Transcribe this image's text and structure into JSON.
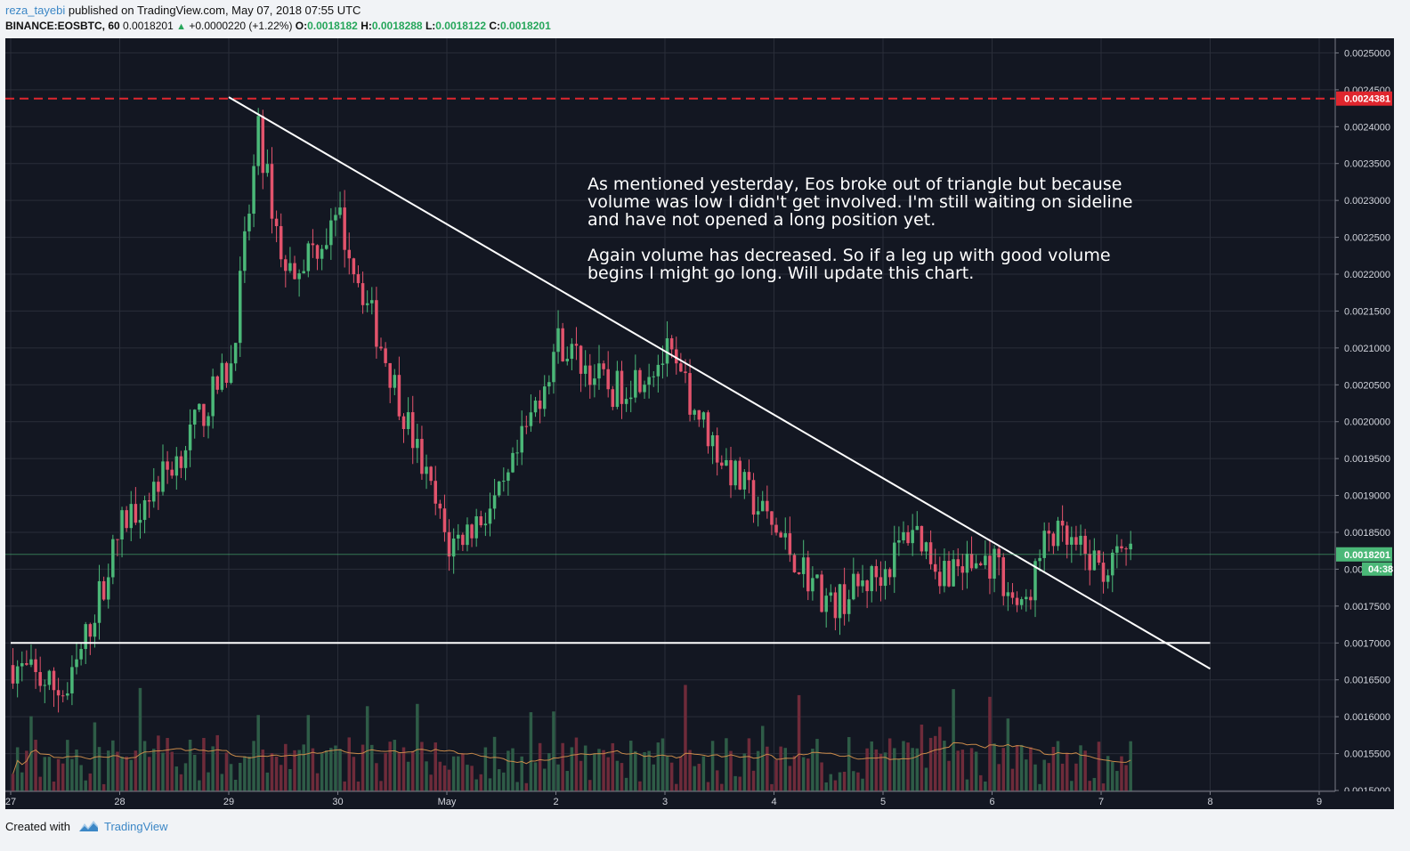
{
  "header": {
    "author": "reza_tayebi",
    "published": "published on TradingView.com, May 07, 2018 07:55 UTC",
    "symbol": "BINANCE:EOSBTC, 60",
    "last": "0.0018201",
    "change_arrow": "▲",
    "change": "+0.0000220 (+1.22%)",
    "o_label": "O:",
    "o_value": "0.0018182",
    "h_label": "H:",
    "h_value": "0.0018288",
    "l_label": "L:",
    "l_value": "0.0018122",
    "c_label": "C:",
    "c_value": "0.0018201"
  },
  "annotation": {
    "paragraph1": "As mentioned yesterday, Eos broke out of triangle but because\nvolume was low I didn't get involved. I'm still waiting on sideline\nand have not opened a long position yet.",
    "paragraph2": "Again volume has decreased. So if a leg up with good volume\nbegins I might go long. Will update this chart."
  },
  "footer": {
    "created_with": "Created with",
    "brand": "TradingView"
  },
  "colors": {
    "background": "#131722",
    "grid": "#2a2e39",
    "up": "#4bb878",
    "down": "#e2536c",
    "up_volume": "#2e5c47",
    "down_volume": "#6e2b3a",
    "resistance_line": "#e0262e",
    "trend_line": "#ffffff",
    "volume_ma": "#c98a4a"
  },
  "chart_data": {
    "type": "candlestick",
    "title": "BINANCE:EOSBTC, 60",
    "y_axis": {
      "min": 0.0015,
      "max": 0.00255,
      "tick_labels": [
        "0.0015000",
        "0.0015500",
        "0.0016000",
        "0.0016500",
        "0.0017000",
        "0.0017500",
        "0.0018000",
        "0.0018500",
        "0.0019000",
        "0.0019500",
        "0.0020000",
        "0.0020500",
        "0.0021000",
        "0.0021500",
        "0.0022000",
        "0.0022500",
        "0.0023000",
        "0.0023500",
        "0.0024000",
        "0.0024500",
        "0.0025000"
      ],
      "position": "right",
      "last_price_label": "0.0018201",
      "countdown_label": "04:38",
      "resistance_label": "0.0024381"
    },
    "x_axis": {
      "tick_labels": [
        "27",
        "28",
        "29",
        "30",
        "May",
        "2",
        "3",
        "4",
        "5",
        "6",
        "7",
        "8",
        "9"
      ]
    },
    "lines": [
      {
        "name": "resistance",
        "style": "dashed",
        "y": 0.0024381
      },
      {
        "name": "support",
        "style": "solid",
        "from": {
          "x": "27",
          "y": 0.0017
        },
        "to": {
          "x": "8",
          "y": 0.0017
        }
      },
      {
        "name": "descending trendline",
        "style": "solid",
        "from": {
          "x": "29",
          "y": 0.00244
        },
        "to": {
          "x": "8",
          "y": 0.001665
        }
      }
    ],
    "close_path": [
      [
        "27",
        0.00167
      ],
      [
        "27 12:00",
        0.00163
      ],
      [
        "28",
        0.00186
      ],
      [
        "28 12:00",
        0.00195
      ],
      [
        "29",
        0.00208
      ],
      [
        "29 06:00",
        0.00239
      ],
      [
        "29 12:00",
        0.0022
      ],
      [
        "30",
        0.00227
      ],
      [
        "30 12:00",
        0.00205
      ],
      [
        "May 00:00",
        0.00183
      ],
      [
        "May 12:00",
        0.0019
      ],
      [
        "2",
        0.00211
      ],
      [
        "2 12:00",
        0.00204
      ],
      [
        "3",
        0.00209
      ],
      [
        "3 12:00",
        0.00195
      ],
      [
        "4",
        0.00185
      ],
      [
        "4 12:00",
        0.00175
      ],
      [
        "5",
        0.0018
      ],
      [
        "5 06:00",
        0.00186
      ],
      [
        "5 12:00",
        0.0018
      ],
      [
        "6",
        0.00181
      ],
      [
        "6 06:00",
        0.00174
      ],
      [
        "6 12:00",
        0.00185
      ],
      [
        "7",
        0.0018
      ],
      [
        "7 06:00",
        0.00182
      ]
    ],
    "volume": "shown in lower pane with moving average",
    "grid": true,
    "legend": "top-left"
  }
}
